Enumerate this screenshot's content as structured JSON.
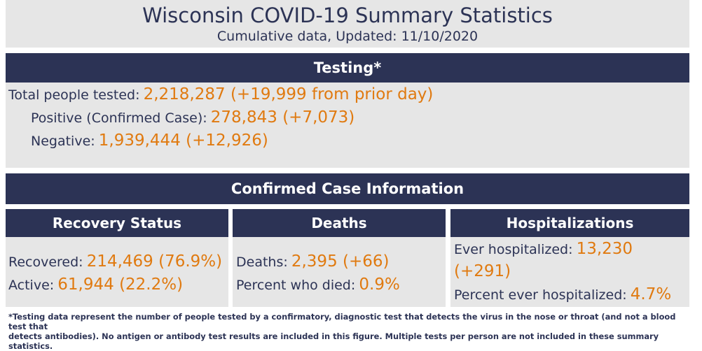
{
  "header": {
    "title": "Wisconsin COVID-19 Summary Statistics",
    "subtitle": "Cumulative data, Updated: 11/10/2020"
  },
  "testing": {
    "heading": "Testing*",
    "total_label": "Total people tested:",
    "total_value": "2,218,287 (+19,999 from prior day)",
    "positive_label": "Positive (Confirmed Case):",
    "positive_value": "278,843 (+7,073)",
    "negative_label": "Negative:",
    "negative_value": "1,939,444 (+12,926)"
  },
  "confirmed": {
    "heading": "Confirmed Case Information"
  },
  "recovery": {
    "heading": "Recovery Status",
    "recovered_label": "Recovered:",
    "recovered_value": "214,469 (76.9%)",
    "active_label": "Active:",
    "active_value": "61,944 (22.2%)"
  },
  "deaths": {
    "heading": "Deaths",
    "deaths_label": "Deaths:",
    "deaths_value": "2,395 (+66)",
    "percent_label": "Percent who died:",
    "percent_value": "0.9%"
  },
  "hospitalizations": {
    "heading": "Hospitalizations",
    "ever_label": "Ever hospitalized:",
    "ever_value": "13,230",
    "ever_change": "(+291)",
    "percent_label": "Percent ever hospitalized:",
    "percent_value": "4.7%"
  },
  "footnote": {
    "line1": "*Testing data represent the number of people tested by a confirmatory, diagnostic test that detects the virus in the nose or throat (and not a blood test that",
    "line2": "detects antibodies). No antigen or antibody test results are included in this figure. Multiple tests per person are not included in these summary statistics."
  },
  "colors": {
    "navy": "#2c3355",
    "orange": "#e07a10",
    "panel_gray": "#e6e6e6"
  }
}
